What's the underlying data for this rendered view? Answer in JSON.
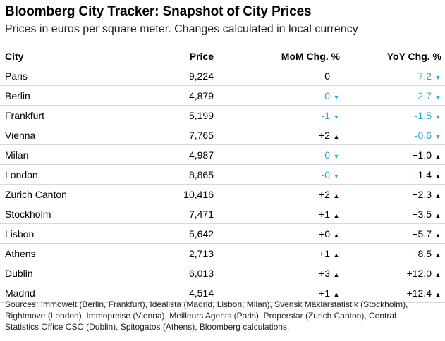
{
  "title": "Bloomberg City Tracker: Snapshot of City Prices",
  "subtitle": "Prices in euros per square meter. Changes calculated in local currency",
  "colors": {
    "negative": "#2aa7d9",
    "positive": "#000000",
    "divider": "#d9d9d9"
  },
  "chart_data": {
    "type": "table",
    "columns": [
      "City",
      "Price",
      "MoM Chg. %",
      "YoY Chg. %"
    ],
    "rows": [
      {
        "city": "Paris",
        "price": "9,224",
        "mom": "0",
        "mom_dir": "none",
        "yoy": "-7.2",
        "yoy_dir": "down"
      },
      {
        "city": "Berlin",
        "price": "4,879",
        "mom": "-0",
        "mom_dir": "down",
        "yoy": "-2.7",
        "yoy_dir": "down"
      },
      {
        "city": "Frankfurt",
        "price": "5,199",
        "mom": "-1",
        "mom_dir": "down",
        "yoy": "-1.5",
        "yoy_dir": "down"
      },
      {
        "city": "Vienna",
        "price": "7,765",
        "mom": "+2",
        "mom_dir": "up",
        "yoy": "-0.6",
        "yoy_dir": "down"
      },
      {
        "city": "Milan",
        "price": "4,987",
        "mom": "-0",
        "mom_dir": "down",
        "yoy": "+1.0",
        "yoy_dir": "up"
      },
      {
        "city": "London",
        "price": "8,865",
        "mom": "-0",
        "mom_dir": "down",
        "yoy": "+1.4",
        "yoy_dir": "up"
      },
      {
        "city": "Zurich Canton",
        "price": "10,416",
        "mom": "+2",
        "mom_dir": "up",
        "yoy": "+2.3",
        "yoy_dir": "up"
      },
      {
        "city": "Stockholm",
        "price": "7,471",
        "mom": "+1",
        "mom_dir": "up",
        "yoy": "+3.5",
        "yoy_dir": "up"
      },
      {
        "city": "Lisbon",
        "price": "5,642",
        "mom": "+0",
        "mom_dir": "up",
        "yoy": "+5.7",
        "yoy_dir": "up"
      },
      {
        "city": "Athens",
        "price": "2,713",
        "mom": "+1",
        "mom_dir": "up",
        "yoy": "+8.5",
        "yoy_dir": "up"
      },
      {
        "city": "Dublin",
        "price": "6,013",
        "mom": "+3",
        "mom_dir": "up",
        "yoy": "+12.0",
        "yoy_dir": "up"
      },
      {
        "city": "Madrid",
        "price": "4,514",
        "mom": "+1",
        "mom_dir": "up",
        "yoy": "+12.4",
        "yoy_dir": "up"
      }
    ]
  },
  "source": "Sources: Immowelt (Berlin, Frankfurt), Idealista (Madrid, Lisbon, Milan), Svensk Mäklarstatistik (Stockholm), Rightmove (London), Immopreise (Vienna), Meilleurs Agents (Paris), Properstar (Zurich Canton), Central Statistics Office CSO (Dublin), Spitogatos (Athens), Bloomberg calculations."
}
